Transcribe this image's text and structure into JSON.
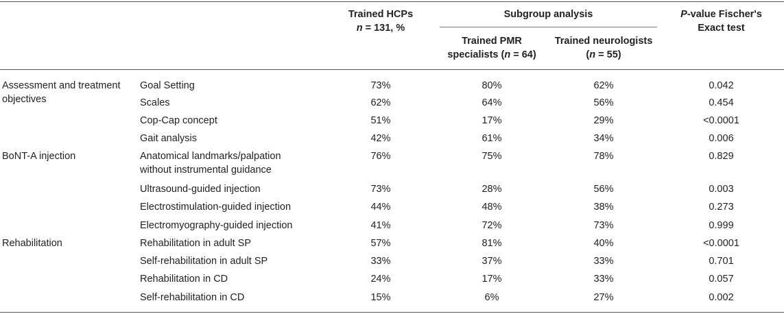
{
  "header": {
    "trained_hcps_line1": "Trained HCPs",
    "trained_hcps_n_italic": "n",
    "trained_hcps_n_rest": " = 131, %",
    "subgroup": "Subgroup analysis",
    "pmr_line1": "Trained PMR",
    "pmr_line2_pre": "specialists (",
    "pmr_line2_n": "n",
    "pmr_line2_post": " = 64)",
    "neuro_line1": "Trained neurologists",
    "neuro_line2_pre": "(",
    "neuro_line2_n": "n",
    "neuro_line2_post": " = 55)",
    "pvalue_italic": "P",
    "pvalue_rest": "-value Fischer's",
    "pvalue_line2": "Exact test"
  },
  "groups": [
    {
      "label_line1": "Assessment and treatment",
      "label_line2": "objectives"
    },
    {
      "label_line1": "BoNT-A injection"
    },
    {
      "label_line1": "Rehabilitation"
    }
  ],
  "rows": [
    {
      "item": "Goal Setting",
      "trained": "73%",
      "pmr": "80%",
      "neuro": "62%",
      "p": "0.042"
    },
    {
      "item": "Scales",
      "trained": "62%",
      "pmr": "64%",
      "neuro": "56%",
      "p": "0.454"
    },
    {
      "item": "Cop-Cap concept",
      "trained": "51%",
      "pmr": "17%",
      "neuro": "29%",
      "p": "<0.0001"
    },
    {
      "item": "Gait analysis",
      "trained": "42%",
      "pmr": "61%",
      "neuro": "34%",
      "p": "0.006"
    },
    {
      "item": "Anatomical landmarks/palpation",
      "item_line2": "without instrumental guidance",
      "trained": "76%",
      "pmr": "75%",
      "neuro": "78%",
      "p": "0.829"
    },
    {
      "item": "Ultrasound-guided injection",
      "trained": "73%",
      "pmr": "28%",
      "neuro": "56%",
      "p": "0.003"
    },
    {
      "item": "Electrostimulation-guided injection",
      "trained": "44%",
      "pmr": "48%",
      "neuro": "38%",
      "p": "0.273"
    },
    {
      "item": "Electromyography-guided injection",
      "trained": "41%",
      "pmr": "72%",
      "neuro": "73%",
      "p": "0.999"
    },
    {
      "item": "Rehabilitation in adult SP",
      "trained": "57%",
      "pmr": "81%",
      "neuro": "40%",
      "p": "<0.0001"
    },
    {
      "item": "Self-rehabilitation in adult SP",
      "trained": "33%",
      "pmr": "37%",
      "neuro": "33%",
      "p": "0.701"
    },
    {
      "item": "Rehabilitation in CD",
      "trained": "24%",
      "pmr": "17%",
      "neuro": "33%",
      "p": "0.057"
    },
    {
      "item": "Self-rehabilitation in CD",
      "trained": "15%",
      "pmr": "6%",
      "neuro": "27%",
      "p": "0.002"
    }
  ]
}
